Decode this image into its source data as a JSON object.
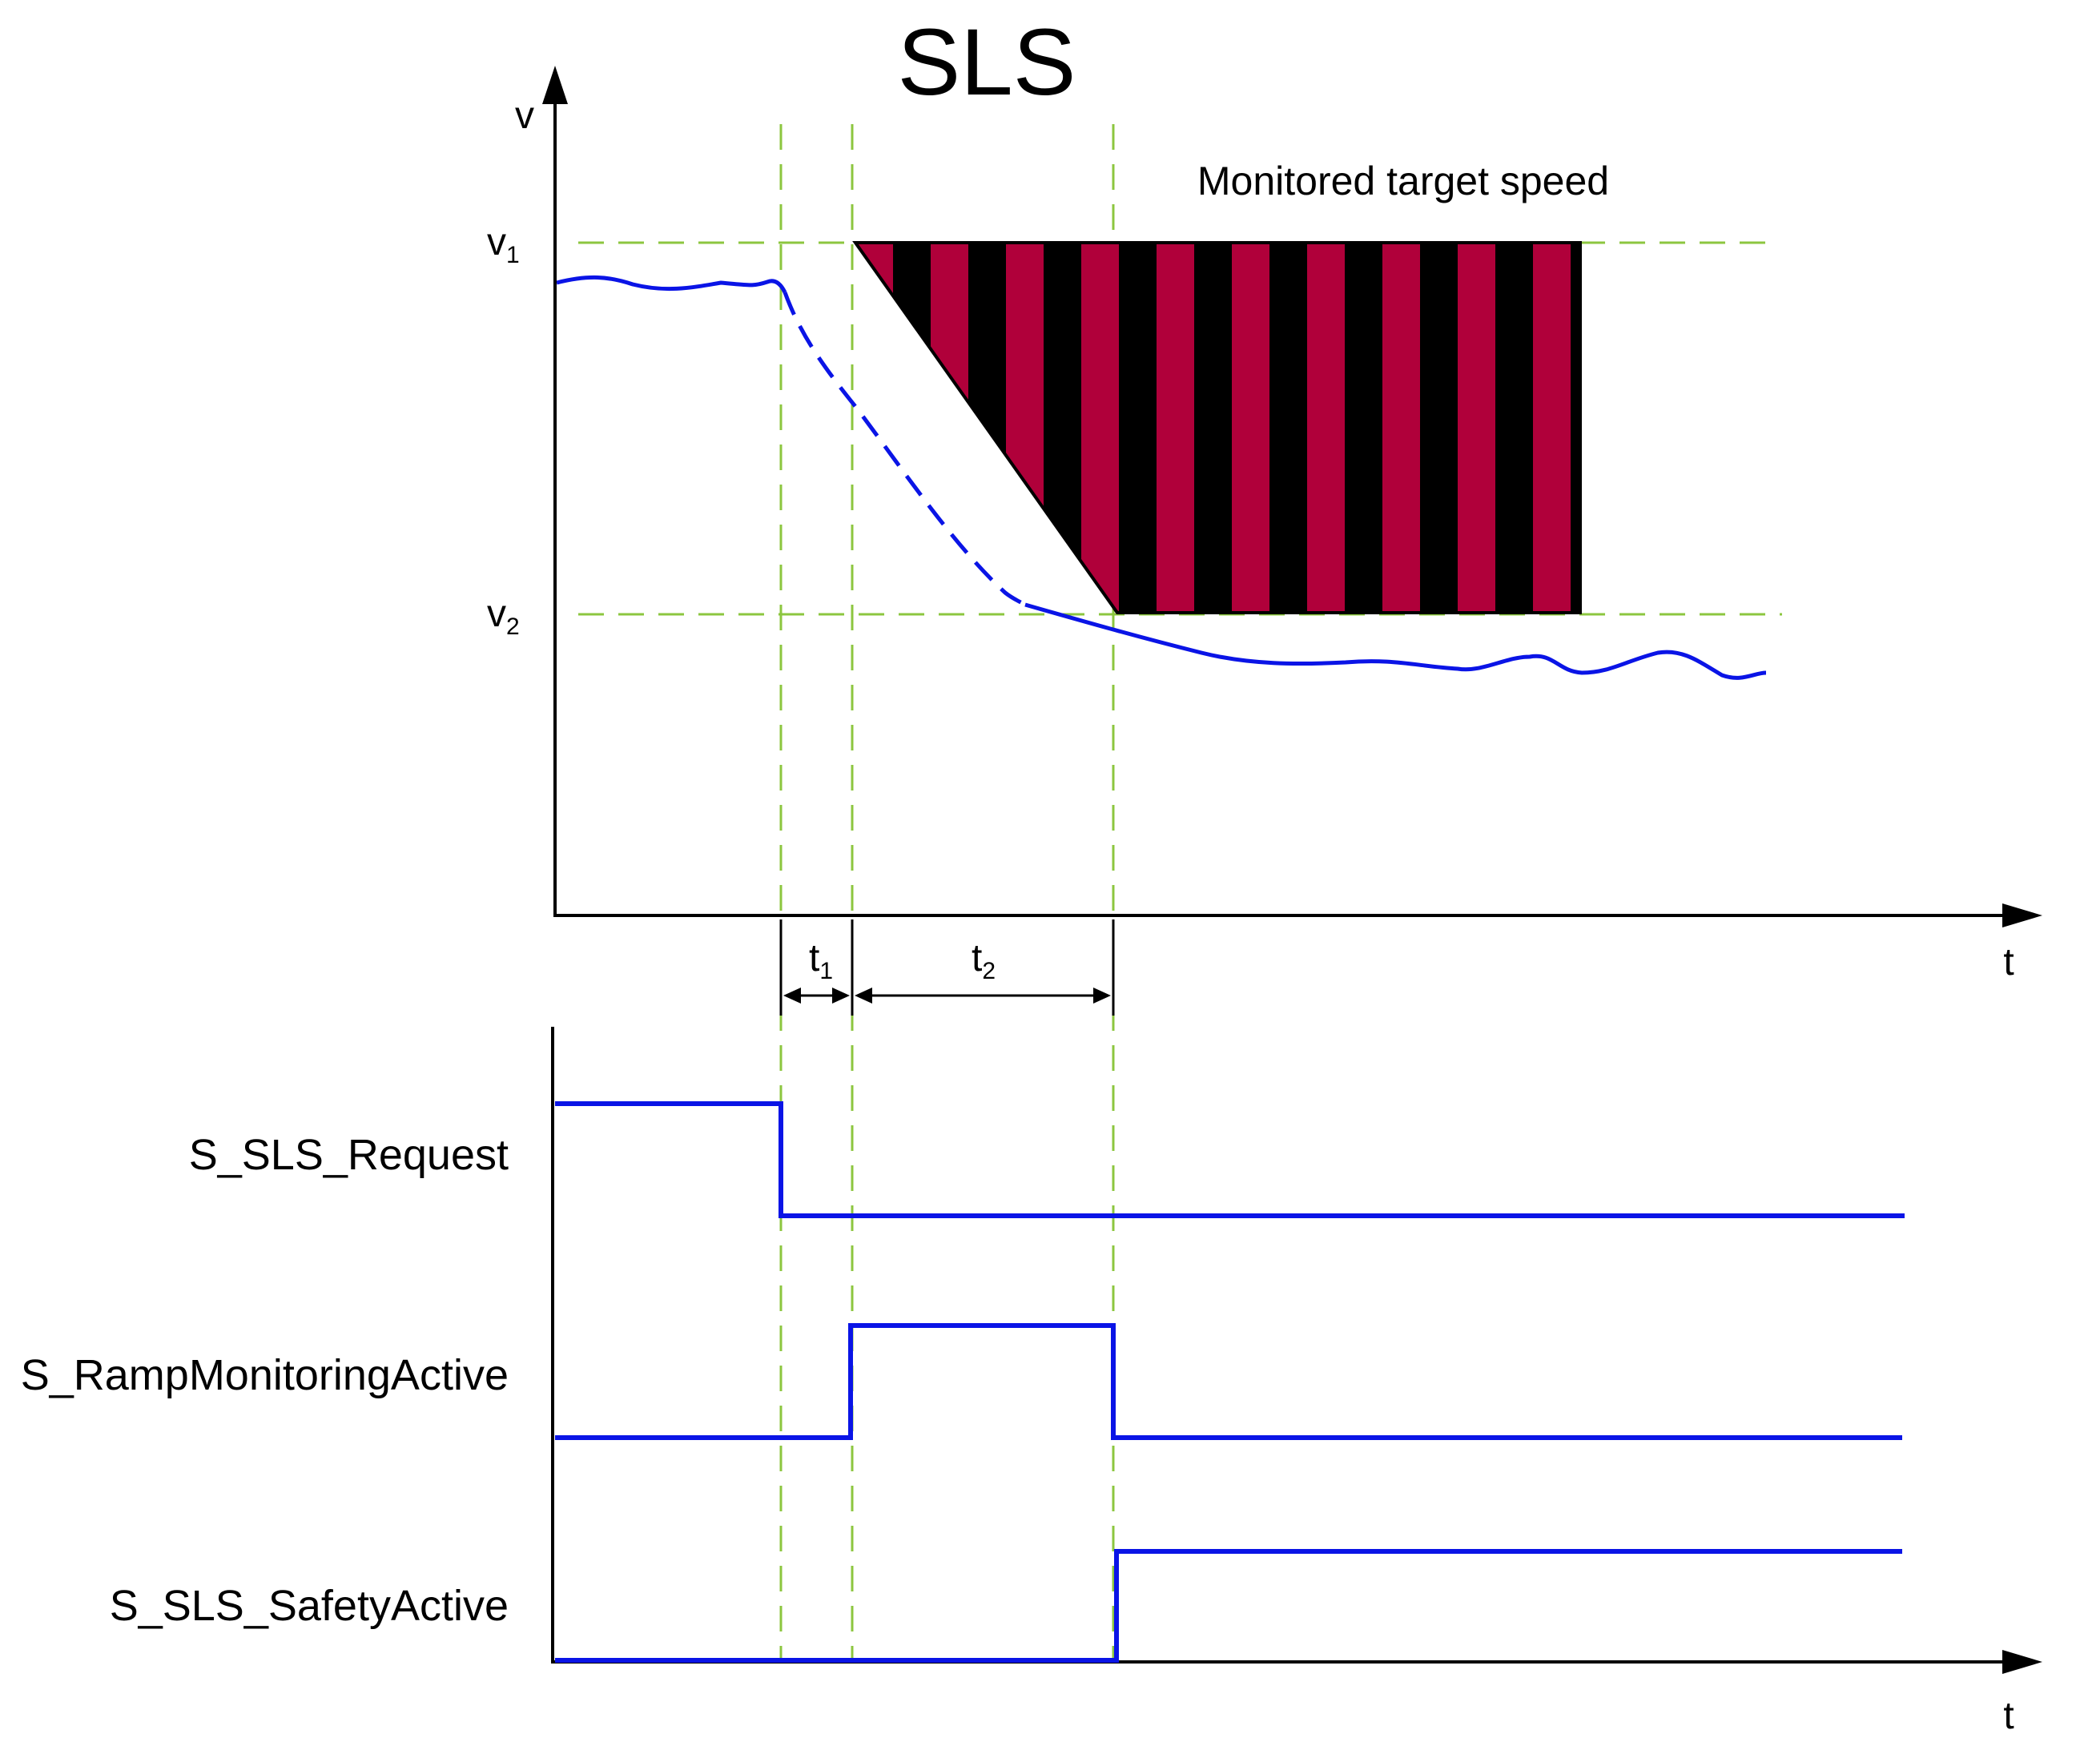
{
  "title": "SLS",
  "speed_chart": {
    "y_axis_label": "v",
    "x_axis_label": "t",
    "levels": [
      {
        "name": "v",
        "sub": "1"
      },
      {
        "name": "v",
        "sub": "2"
      }
    ],
    "zone_label": "Monitored target speed",
    "intervals": [
      {
        "name": "t",
        "sub": "1"
      },
      {
        "name": "t",
        "sub": "2"
      }
    ]
  },
  "timing_chart": {
    "x_axis_label": "t",
    "signals": [
      {
        "name": "S_SLS_Request"
      },
      {
        "name": "S_RampMonitoringActive"
      },
      {
        "name": "S_SLS_SafetyActive"
      }
    ]
  },
  "colors": {
    "signal": "#0a14e6",
    "guide": "#8cc63f",
    "stripe_dark": "#000000",
    "stripe_red": "#b0003a",
    "axis": "#000000"
  }
}
